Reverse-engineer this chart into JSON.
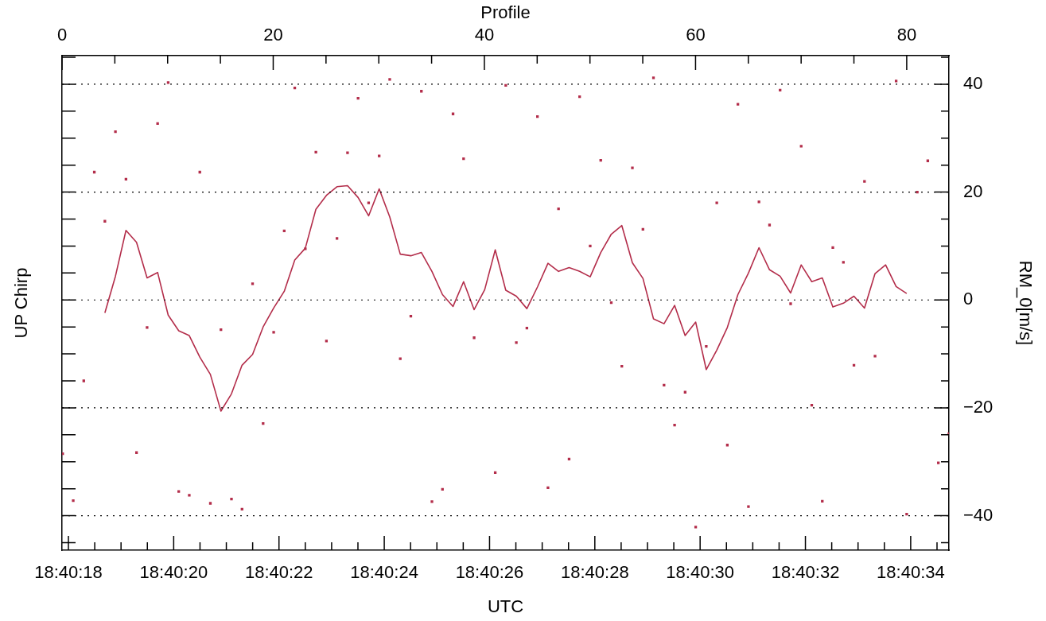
{
  "chart_data": {
    "type": "line",
    "xlabel": "UTC",
    "x2label": "Profile",
    "ylabel": "RM_0[m/s]",
    "annotations": [
      "UP Chirp"
    ],
    "xlim": [
      18.6716331,
      18.676313
    ],
    "xticks": [
      {
        "value": 18.6716667,
        "label": "18:40:18"
      },
      {
        "value": 18.6718056,
        "label": null
      },
      {
        "value": 18.6719444,
        "label": null
      },
      {
        "value": 18.6720833,
        "label": null
      },
      {
        "value": 18.6722222,
        "label": "18:40:20"
      },
      {
        "value": 18.6723611,
        "label": null
      },
      {
        "value": 18.6725,
        "label": null
      },
      {
        "value": 18.6726389,
        "label": null
      },
      {
        "value": 18.6727778,
        "label": "18:40:22"
      },
      {
        "value": 18.6729167,
        "label": null
      },
      {
        "value": 18.6730556,
        "label": null
      },
      {
        "value": 18.6731944,
        "label": null
      },
      {
        "value": 18.6733333,
        "label": "18:40:24"
      },
      {
        "value": 18.6734722,
        "label": null
      },
      {
        "value": 18.6736111,
        "label": null
      },
      {
        "value": 18.67375,
        "label": null
      },
      {
        "value": 18.6738889,
        "label": "18:40:26"
      },
      {
        "value": 18.6740278,
        "label": null
      },
      {
        "value": 18.6741667,
        "label": null
      },
      {
        "value": 18.6743056,
        "label": null
      },
      {
        "value": 18.6744444,
        "label": "18:40:28"
      },
      {
        "value": 18.6745833,
        "label": null
      },
      {
        "value": 18.6747222,
        "label": null
      },
      {
        "value": 18.6748611,
        "label": null
      },
      {
        "value": 18.675,
        "label": "18:40:30"
      },
      {
        "value": 18.6751389,
        "label": null
      },
      {
        "value": 18.6752778,
        "label": null
      },
      {
        "value": 18.6754167,
        "label": null
      },
      {
        "value": 18.6755556,
        "label": "18:40:32"
      },
      {
        "value": 18.6756944,
        "label": null
      },
      {
        "value": 18.6758333,
        "label": null
      },
      {
        "value": 18.6759722,
        "label": null
      },
      {
        "value": 18.6761111,
        "label": "18:40:34"
      },
      {
        "value": 18.67625,
        "label": null
      }
    ],
    "x2lim": [
      0,
      84
    ],
    "x2ticks": [
      0,
      {
        "value": 5,
        "label": null
      },
      {
        "value": 10,
        "label": null
      },
      {
        "value": 15,
        "label": null
      },
      20,
      {
        "value": 25,
        "label": null
      },
      {
        "value": 30,
        "label": null
      },
      {
        "value": 35,
        "label": null
      },
      40,
      {
        "value": 45,
        "label": null
      },
      {
        "value": 50,
        "label": null
      },
      {
        "value": 55,
        "label": null
      },
      60,
      {
        "value": 65,
        "label": null
      },
      {
        "value": 70,
        "label": null
      },
      {
        "value": 75,
        "label": null
      },
      80
    ],
    "ylim": [
      -46.4,
      45.3
    ],
    "yticks": [
      {
        "value": -45,
        "label": null
      },
      {
        "value": -40,
        "label": "−40"
      },
      {
        "value": -35,
        "label": null
      },
      {
        "value": -30,
        "label": null
      },
      {
        "value": -25,
        "label": null
      },
      {
        "value": -20,
        "label": "−20"
      },
      {
        "value": -15,
        "label": null
      },
      {
        "value": -10,
        "label": null
      },
      {
        "value": -5,
        "label": null
      },
      0,
      {
        "value": 5,
        "label": null
      },
      {
        "value": 10,
        "label": null
      },
      {
        "value": 15,
        "label": null
      },
      20,
      {
        "value": 25,
        "label": null
      },
      {
        "value": 30,
        "label": null
      },
      {
        "value": 35,
        "label": null
      },
      40,
      {
        "value": 45,
        "label": null
      }
    ],
    "grid": "y",
    "series": [
      {
        "type": "scatter",
        "color": "#b32d4a",
        "marker": "square",
        "x": [
          18.6716364,
          18.6716921,
          18.6717477,
          18.6718034,
          18.6718591,
          18.6719148,
          18.6719704,
          18.6720261,
          18.6720818,
          18.6721374,
          18.6721931,
          18.6722488,
          18.6723044,
          18.6723601,
          18.6724158,
          18.6724715,
          18.6725271,
          18.6725828,
          18.6726385,
          18.6726941,
          18.6727498,
          18.6728055,
          18.6728611,
          18.6729168,
          18.6729725,
          18.6730282,
          18.6730838,
          18.6731395,
          18.6731952,
          18.6732508,
          18.6733065,
          18.6733622,
          18.6734178,
          18.6734735,
          18.6735292,
          18.6735849,
          18.6736405,
          18.6736962,
          18.6737519,
          18.6738075,
          18.6738632,
          18.6739189,
          18.6739745,
          18.6740302,
          18.6740859,
          18.6741416,
          18.6741972,
          18.6742529,
          18.6743086,
          18.6743642,
          18.6744199,
          18.6744756,
          18.6745312,
          18.6745869,
          18.6746426,
          18.6746983,
          18.6747539,
          18.6748096,
          18.6748653,
          18.6749209,
          18.6749766,
          18.6750323,
          18.6750879,
          18.6751436,
          18.6751993,
          18.675255,
          18.6753106,
          18.6753663,
          18.675422,
          18.6754776,
          18.6755333,
          18.675589,
          18.6756446,
          18.6757003,
          18.675756,
          18.6758117,
          18.6758673,
          18.675923,
          18.6759787,
          18.6760343,
          18.67609,
          18.6761457,
          18.6762013,
          18.676257,
          18.6763127
        ],
        "values": [
          -28.5,
          -37.2,
          -15.0,
          23.7,
          14.6,
          31.2,
          22.4,
          -28.3,
          -5.1,
          32.7,
          40.3,
          -35.5,
          -36.2,
          23.7,
          -37.7,
          -5.5,
          -36.9,
          -38.8,
          3.0,
          -22.9,
          -6.0,
          12.8,
          39.3,
          9.5,
          27.4,
          -7.6,
          11.4,
          27.3,
          37.4,
          18.0,
          26.7,
          40.9,
          -10.9,
          -3.0,
          38.7,
          -37.4,
          -35.1,
          34.5,
          26.2,
          -7.0,
          null,
          -32.0,
          39.8,
          -7.9,
          -5.2,
          34.0,
          -34.8,
          16.9,
          -29.5,
          37.7,
          10.0,
          25.9,
          -0.5,
          -12.3,
          24.5,
          13.1,
          41.2,
          -15.8,
          -23.2,
          -17.1,
          -42.1,
          -8.6,
          18.0,
          -26.9,
          36.3,
          -38.3,
          18.2,
          13.9,
          38.9,
          -0.7,
          28.5,
          -19.5,
          -37.3,
          9.7,
          7.0,
          -12.1,
          22.0,
          -10.4,
          null,
          40.6,
          -39.7,
          20.0,
          25.8,
          -30.2,
          -24.8
        ]
      },
      {
        "type": "line",
        "color": "#b32d4a",
        "marker": "none",
        "line_style": "solid",
        "x": [
          18.6718591,
          18.6719148,
          18.6719704,
          18.6720261,
          18.6720818,
          18.6721374,
          18.6721931,
          18.6722488,
          18.6723044,
          18.6723601,
          18.6724158,
          18.6724715,
          18.6725271,
          18.6725828,
          18.6726385,
          18.6726941,
          18.6727498,
          18.6728055,
          18.6728611,
          18.6729168,
          18.6729725,
          18.6730282,
          18.6730838,
          18.6731395,
          18.6731952,
          18.6732508,
          18.6733065,
          18.6733622,
          18.6734178,
          18.6734735,
          18.6735292,
          18.6735849,
          18.6736405,
          18.6736962,
          18.6737519,
          18.6738075,
          18.6738632,
          18.6739189,
          18.6739745,
          18.6740302,
          18.6740859,
          18.6741416,
          18.6741972,
          18.6742529,
          18.6743086,
          18.6743642,
          18.6744199,
          18.6744756,
          18.6745312,
          18.6745869,
          18.6746426,
          18.6746983,
          18.6747539,
          18.6748096,
          18.6748653,
          18.6749209,
          18.6749766,
          18.6750323,
          18.6750879,
          18.6751436,
          18.6751993,
          18.675255,
          18.6753106,
          18.6753663,
          18.675422,
          18.6754776,
          18.6755333,
          18.675589,
          18.6756446,
          18.6757003,
          18.675756,
          18.6758117,
          18.6758673,
          18.675923,
          18.6759787,
          18.6760343,
          18.67609
        ],
        "values": [
          -2.4,
          4.4,
          12.9,
          10.7,
          4.1,
          5.1,
          -2.8,
          -5.7,
          -6.6,
          -10.6,
          -13.8,
          -20.6,
          -17.4,
          -12.1,
          -10.1,
          -5.0,
          -1.5,
          1.6,
          7.4,
          9.6,
          16.8,
          19.4,
          21.0,
          21.2,
          19.0,
          15.6,
          20.6,
          15.4,
          8.5,
          8.2,
          8.8,
          5.3,
          1.0,
          -1.2,
          3.4,
          -1.8,
          1.9,
          9.3,
          1.8,
          0.7,
          -1.6,
          2.4,
          6.8,
          5.3,
          6.0,
          5.3,
          4.3,
          8.8,
          12.2,
          13.8,
          6.9,
          4.0,
          -3.5,
          -4.4,
          -1.0,
          -6.6,
          -4.1,
          -12.9,
          -9.3,
          -5.1,
          1.0,
          5.0,
          9.7,
          5.6,
          4.4,
          1.3,
          6.5,
          3.4,
          4.1,
          -1.3,
          -0.6,
          0.7,
          -1.5,
          4.9,
          6.5,
          2.5,
          1.2
        ]
      }
    ]
  }
}
